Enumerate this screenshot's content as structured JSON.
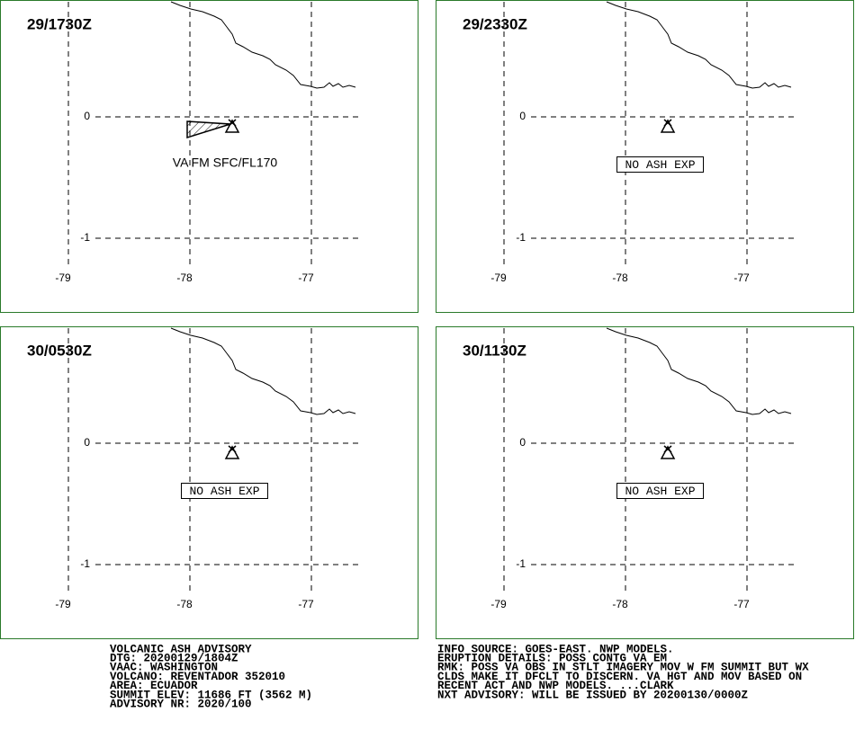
{
  "panels": [
    {
      "time": "29/1730Z",
      "note": "VA FM SFC/FL170"
    },
    {
      "time": "29/2330Z",
      "note": "NO ASH EXP"
    },
    {
      "time": "30/0530Z",
      "note": "NO ASH EXP"
    },
    {
      "time": "30/1130Z",
      "note": "NO ASH EXP"
    }
  ],
  "grid": {
    "lat_labels": [
      "0",
      "-1"
    ],
    "lon_labels": [
      "-79",
      "-78",
      "-77"
    ]
  },
  "advisory": {
    "left": [
      "VOLCANIC ASH ADVISORY",
      "DTG: 20200129/1804Z",
      "VAAC: WASHINGTON",
      "VOLCANO: REVENTADOR 352010",
      "AREA: ECUADOR",
      "SUMMIT ELEV: 11686 FT (3562 M)",
      "ADVISORY NR: 2020/100"
    ],
    "right": [
      "INFO SOURCE: GOES-EAST. NWP MODELS.",
      "ERUPTION DETAILS: POSS CONTG VA EM",
      "RMK: POSS VA OBS IN STLT IMAGERY MOV W FM SUMMIT BUT WX",
      "CLDS MAKE IT DFCLT TO DISCERN. VA HGT AND MOV BASED ON",
      "RECENT ACT AND NWP MODELS. ...CLARK",
      "NXT ADVISORY: WILL BE ISSUED BY 20200130/0000Z"
    ]
  }
}
